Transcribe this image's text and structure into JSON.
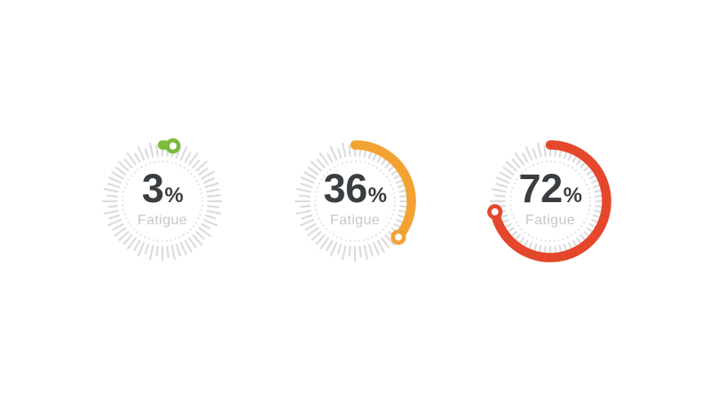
{
  "page": {
    "background": "#ffffff"
  },
  "chart_data": [
    {
      "type": "gauge",
      "value": 3,
      "unit": "%",
      "label": "Fatigue",
      "min": 0,
      "max": 100,
      "arc_color": "#7cbb3d",
      "start_angle_deg": 0,
      "sweep": "clockwise-from-top",
      "end_marker": "white-dot-ring"
    },
    {
      "type": "gauge",
      "value": 36,
      "unit": "%",
      "label": "Fatigue",
      "min": 0,
      "max": 100,
      "arc_color": "#f2a233",
      "start_angle_deg": 0,
      "sweep": "clockwise-from-top",
      "end_marker": "white-dot-ring"
    },
    {
      "type": "gauge",
      "value": 72,
      "unit": "%",
      "label": "Fatigue",
      "min": 0,
      "max": 100,
      "arc_color": "#e5472c",
      "start_angle_deg": 0,
      "sweep": "clockwise-from-top",
      "end_marker": "white-dot-ring"
    }
  ],
  "styles": {
    "tick_color": "#dcdcdc",
    "dot_ring_color": "#e3e3e3",
    "value_text_color": "#3a3e41",
    "label_text_color": "#c8c8c8",
    "marker_fill": "#ffffff"
  },
  "layout_note": "three radial fatigue gauges centered horizontally"
}
